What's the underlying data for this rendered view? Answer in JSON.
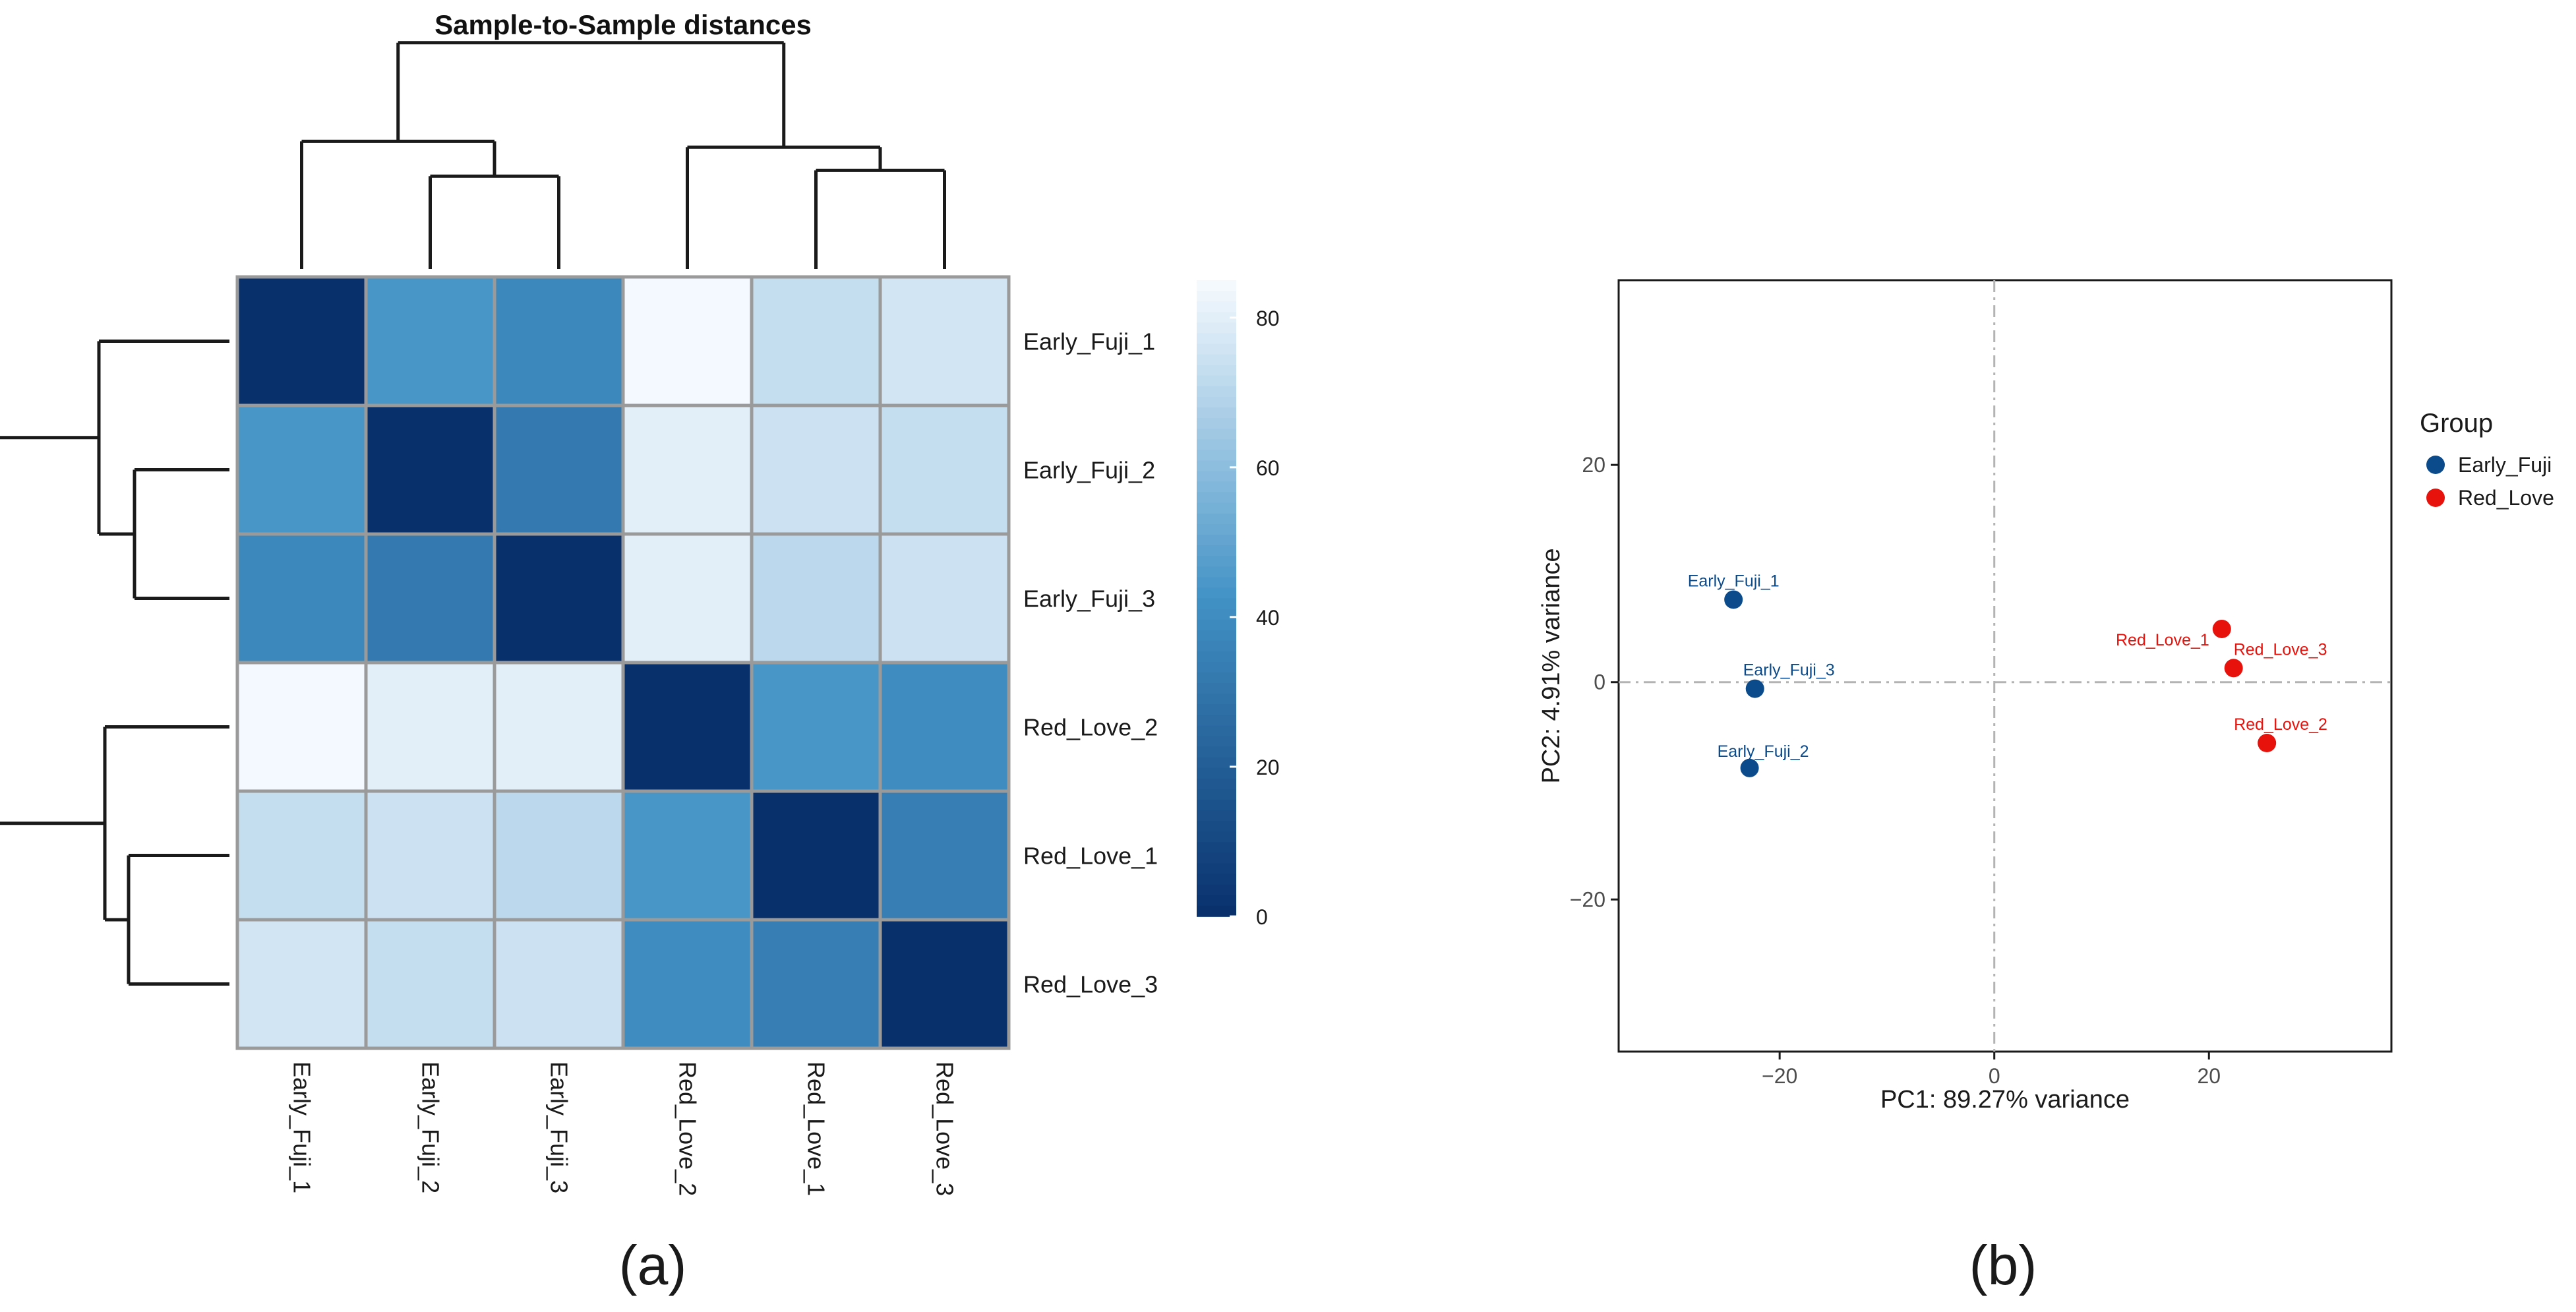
{
  "chart_data": [
    {
      "type": "heatmap",
      "title": "Sample-to-Sample distances",
      "panel_label": "(a)",
      "row_labels": [
        "Early_Fuji_1",
        "Early_Fuji_2",
        "Early_Fuji_3",
        "Red_Love_2",
        "Red_Love_1",
        "Red_Love_3"
      ],
      "col_labels": [
        "Early_Fuji_1",
        "Early_Fuji_2",
        "Early_Fuji_3",
        "Red_Love_2",
        "Red_Love_1",
        "Red_Love_3"
      ],
      "values": [
        [
          0,
          44,
          38,
          84,
          73,
          76
        ],
        [
          44,
          0,
          32,
          80,
          75,
          73
        ],
        [
          38,
          32,
          0,
          80,
          71,
          75
        ],
        [
          84,
          80,
          80,
          0,
          44,
          40
        ],
        [
          73,
          75,
          71,
          44,
          0,
          34
        ],
        [
          76,
          73,
          75,
          40,
          34,
          0
        ]
      ],
      "colorbar": {
        "min": 0,
        "max": 85,
        "ticks": [
          0,
          20,
          40,
          60,
          80
        ],
        "tick_labels": [
          "0",
          "20",
          "40",
          "60",
          "80"
        ],
        "low_color": "#08306b",
        "mid_color": "#4292c6",
        "high_color": "#f7fbff"
      },
      "dendrogram": {
        "order": [
          "Early_Fuji_1",
          "Early_Fuji_2",
          "Early_Fuji_3",
          "Red_Love_2",
          "Red_Love_1",
          "Red_Love_3"
        ],
        "merges": [
          {
            "a": "Early_Fuji_2",
            "b": "Early_Fuji_3",
            "height": 32
          },
          {
            "a": "Red_Love_1",
            "b": "Red_Love_3",
            "height": 34
          },
          {
            "a": "Early_Fuji_1",
            "b": "Early_Fuji_2+Early_Fuji_3",
            "height": 44
          },
          {
            "a": "Red_Love_2",
            "b": "Red_Love_1+Red_Love_3",
            "height": 42
          },
          {
            "a": "Early_Fuji",
            "b": "Red_Love",
            "height": 78
          }
        ]
      }
    },
    {
      "type": "scatter",
      "panel_label": "(b)",
      "xlabel": "PC1: 89.27% variance",
      "ylabel": "PC2: 4.91% variance",
      "xlim": [
        -35,
        37
      ],
      "ylim": [
        -34,
        37
      ],
      "xticks": [
        -20,
        0,
        20
      ],
      "xtick_labels": [
        "−20",
        "0",
        "20"
      ],
      "yticks": [
        -20,
        0,
        20
      ],
      "ytick_labels": [
        "−20",
        "0",
        "20"
      ],
      "grid": false,
      "reference_lines": {
        "x": 0,
        "y": 0
      },
      "legend": {
        "title": "Group",
        "placement": "right"
      },
      "series": [
        {
          "name": "Early_Fuji",
          "color": "#0b4a8b",
          "points": [
            {
              "label": "Early_Fuji_1",
              "x": -24.3,
              "y": 7.6
            },
            {
              "label": "Early_Fuji_3",
              "x": -22.3,
              "y": -0.6
            },
            {
              "label": "Early_Fuji_2",
              "x": -22.8,
              "y": -7.9
            }
          ]
        },
        {
          "name": "Red_Love",
          "color": "#e8120c",
          "points": [
            {
              "label": "Red_Love_1",
              "x": 21.2,
              "y": 4.9
            },
            {
              "label": "Red_Love_3",
              "x": 22.3,
              "y": 1.3
            },
            {
              "label": "Red_Love_2",
              "x": 25.4,
              "y": -5.6
            }
          ]
        }
      ]
    }
  ]
}
